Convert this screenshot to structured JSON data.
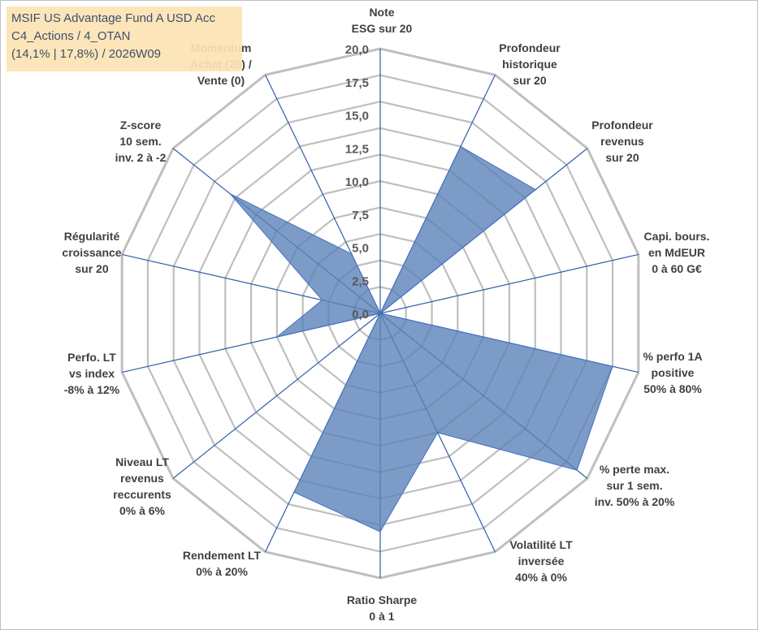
{
  "title_box": {
    "line1": "MSIF US Advantage Fund A USD Acc",
    "line2": "C4_Actions / 4_OTAN",
    "line3": "(14,1% | 17,8%) / 2026W09"
  },
  "colors": {
    "fill": "#5b82b8",
    "stroke": "#4472c4",
    "grid": "#bfbfbf",
    "spoke": "#2f5fa8",
    "title_bg": "#fce4b4"
  },
  "chart_data": {
    "type": "radar",
    "title": "MSIF US Advantage Fund A USD Acc",
    "rlim": [
      0,
      20
    ],
    "ticks": [
      "0,0",
      "2,5",
      "5,0",
      "7,5",
      "10,0",
      "12,5",
      "15,0",
      "17,5",
      "20,0"
    ],
    "tick_values": [
      0,
      2.5,
      5,
      7.5,
      10,
      12.5,
      15,
      17.5,
      20
    ],
    "grid": true,
    "axes": [
      {
        "label": [
          "Note",
          "ESG sur 20"
        ],
        "value": 0
      },
      {
        "label": [
          "Profondeur",
          "historique",
          "sur 20"
        ],
        "value": 14
      },
      {
        "label": [
          "Profondeur",
          "revenus",
          "sur 20"
        ],
        "value": 15
      },
      {
        "label": [
          "Capi. bours.",
          "en MdEUR",
          "0 à 60 G€"
        ],
        "value": 0
      },
      {
        "label": [
          "% perfo 1A",
          "positive",
          "50% à 80%"
        ],
        "value": 18
      },
      {
        "label": [
          "% perte max.",
          "sur 1 sem.",
          "inv. 50% à 20%"
        ],
        "value": 19
      },
      {
        "label": [
          "Volatilité LT",
          "inversée",
          "40% à 0%"
        ],
        "value": 10
      },
      {
        "label": [
          "Ratio Sharpe",
          "0 à 1"
        ],
        "value": 16.5
      },
      {
        "label": [
          "Rendement LT",
          "0% à 20%"
        ],
        "value": 15
      },
      {
        "label": [
          "Niveau LT",
          "revenus",
          "reccurents",
          "0% à 6%"
        ],
        "value": 0
      },
      {
        "label": [
          "Perfo. LT",
          "vs index",
          "-8% à 12%"
        ],
        "value": 8
      },
      {
        "label": [
          "Régularité",
          "croissance",
          "sur 20"
        ],
        "value": 4.5
      },
      {
        "label": [
          "Z-score",
          "10 sem.",
          "inv. 2 à -2"
        ],
        "value": 14.5
      },
      {
        "label": [
          "Momentum",
          "Achat (20) /",
          "Vente (0)"
        ],
        "value": 5
      }
    ]
  }
}
